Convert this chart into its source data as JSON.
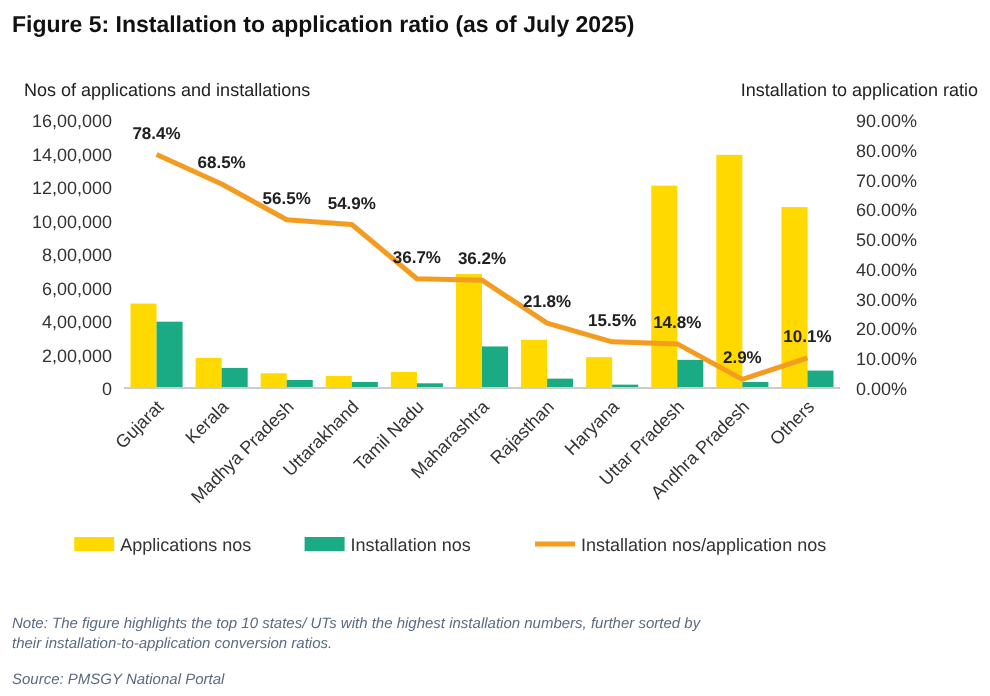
{
  "chart_data": {
    "type": "bar",
    "title": "Figure 5: Installation to application ratio (as of July 2025)",
    "ylabel": "Nos of applications and installations",
    "y2label": "Installation to application ratio",
    "categories": [
      "Gujarat",
      "Kerala",
      "Madhya Pradesh",
      "Uttarakhand",
      "Tamil Nadu",
      "Maharashtra",
      "Rajasthan",
      "Haryana",
      "Uttar Pradesh",
      "Andhra Pradesh",
      "Others"
    ],
    "series": [
      {
        "name": "Applications nos",
        "color": "#ffd900",
        "values": [
          504000,
          180000,
          88000,
          72000,
          96000,
          680000,
          288000,
          184000,
          1208000,
          1392000,
          1080000
        ]
      },
      {
        "name": "Installation nos",
        "color": "#1aab84",
        "values": [
          396000,
          120000,
          48000,
          36000,
          28000,
          248000,
          56000,
          20000,
          168000,
          36000,
          104000
        ]
      },
      {
        "name": "Installation nos/application nos",
        "type": "line",
        "axis": "y2",
        "color": "#f39c1f",
        "values": [
          78.4,
          68.5,
          56.5,
          54.9,
          36.7,
          36.2,
          21.8,
          15.5,
          14.8,
          2.9,
          10.1
        ],
        "value_labels": [
          "78.4%",
          "68.5%",
          "56.5%",
          "54.9%",
          "36.7%",
          "36.2%",
          "21.8%",
          "15.5%",
          "14.8%",
          "2.9%",
          "10.1%"
        ]
      }
    ],
    "ylim": [
      0,
      1600000
    ],
    "yticks": [
      0,
      {
        "value": 200000,
        "label": "2,00,000"
      },
      {
        "value": 400000,
        "label": "4,00,000"
      },
      {
        "value": 600000,
        "label": "6,00,000"
      },
      {
        "value": 800000,
        "label": "8,00,000"
      },
      {
        "value": 1000000,
        "label": "10,00,000"
      },
      {
        "value": 1200000,
        "label": "12,00,000"
      },
      {
        "value": 1400000,
        "label": "14,00,000"
      },
      {
        "value": 1600000,
        "label": "16,00,000"
      }
    ],
    "y2lim": [
      0,
      90
    ],
    "y2ticks": [
      {
        "value": 0,
        "label": "0.00%"
      },
      {
        "value": 10,
        "label": "10.00%"
      },
      {
        "value": 20,
        "label": "20.00%"
      },
      {
        "value": 30,
        "label": "30.00%"
      },
      {
        "value": 40,
        "label": "40.00%"
      },
      {
        "value": 50,
        "label": "50.00%"
      },
      {
        "value": 60,
        "label": "60.00%"
      },
      {
        "value": 70,
        "label": "70.00%"
      },
      {
        "value": 80,
        "label": "80.00%"
      },
      {
        "value": 90,
        "label": "90.00%"
      }
    ],
    "legend": "bottom",
    "grid": false,
    "line_style": "solid",
    "annotations": [
      "Note: The figure highlights the top 10 states/ UTs with the highest installation numbers, further sorted by their installation-to-application conversion ratios.",
      "Source: PMSGY National Portal"
    ]
  }
}
